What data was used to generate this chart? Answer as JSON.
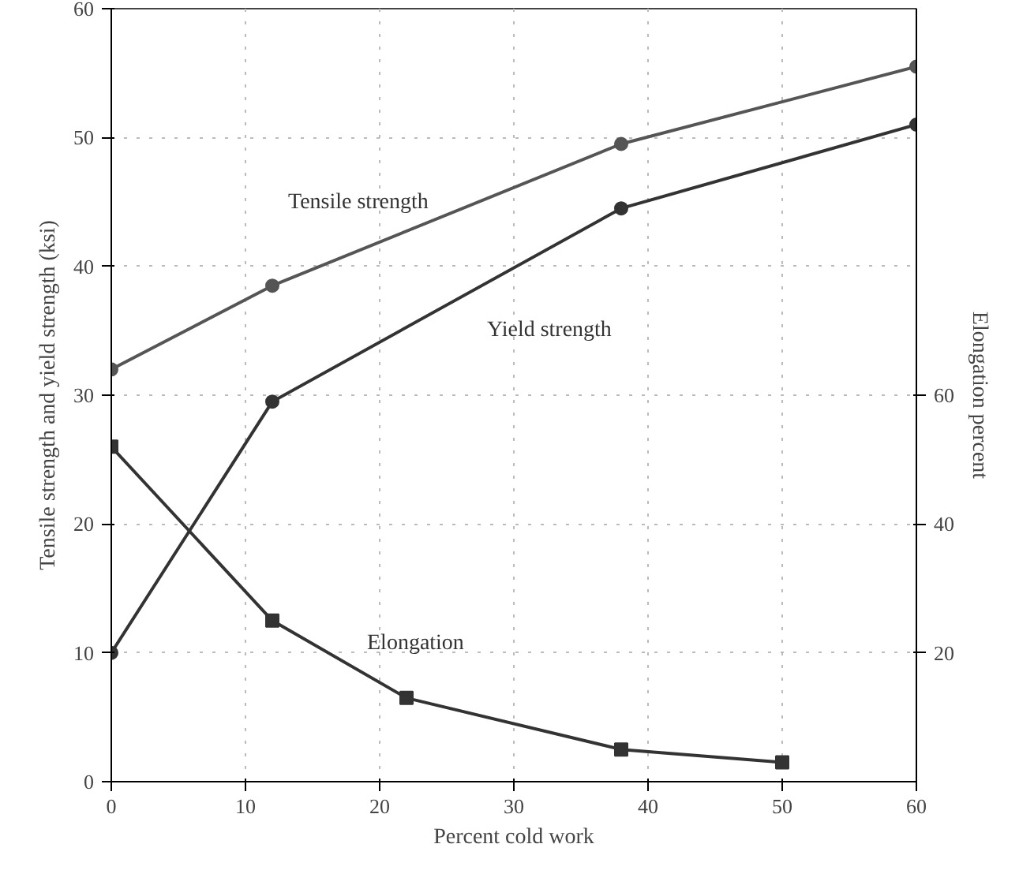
{
  "chart_data": {
    "type": "line",
    "xlabel": "Percent cold work",
    "ylabel": "Tensile strength and yield strength (ksi)",
    "y2label": "Elongation percent",
    "xlim": [
      0,
      60
    ],
    "xticks": [
      0,
      10,
      20,
      30,
      40,
      50,
      60
    ],
    "ylim": [
      0,
      60
    ],
    "yticks": [
      0,
      10,
      20,
      30,
      40,
      50,
      60
    ],
    "y2lim": [
      0,
      120
    ],
    "y2ticks": [
      {
        "value": 20,
        "label": "20"
      },
      {
        "value": 40,
        "label": "40"
      },
      {
        "value": 60,
        "label": "60"
      }
    ],
    "grid": "dotted",
    "line_style": "solid",
    "series": [
      {
        "name": "Tensile strength",
        "color": "#555555",
        "marker": "circle",
        "x": [
          0,
          12,
          38,
          60
        ],
        "values": [
          32,
          38.5,
          49.5,
          55.5
        ]
      },
      {
        "name": "Yield strength",
        "color": "#333333",
        "marker": "circle",
        "x": [
          0,
          12,
          38,
          60
        ],
        "values": [
          10,
          29.5,
          44.5,
          51
        ]
      },
      {
        "name": "Elongation",
        "color": "#333333",
        "marker": "square",
        "axis": "y2",
        "x": [
          0,
          12,
          22,
          38,
          50
        ],
        "values": [
          52,
          25,
          13,
          5,
          3
        ]
      }
    ]
  }
}
